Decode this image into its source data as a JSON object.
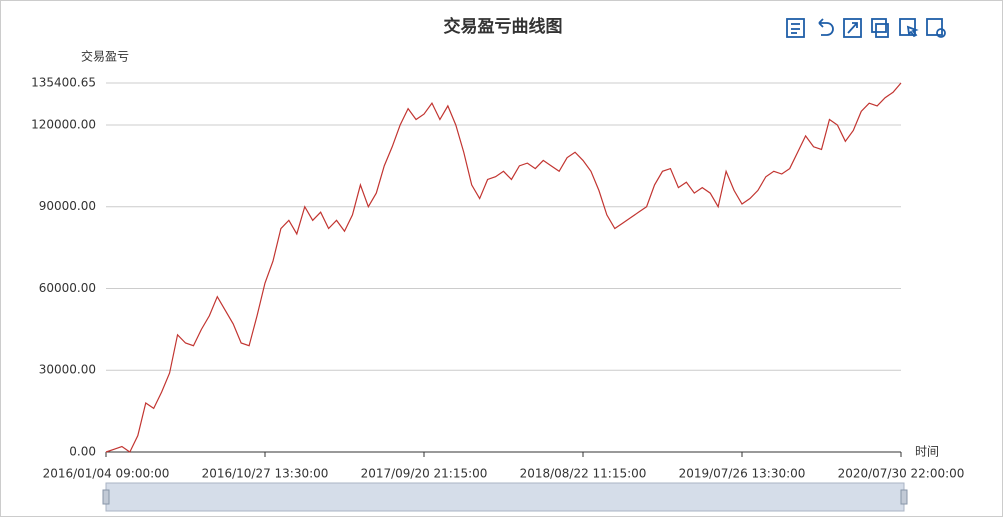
{
  "chart_data": {
    "type": "line",
    "title": "交易盈亏曲线图",
    "y_label": "交易盈亏",
    "x_label": "时间",
    "categories": [
      "2016/01/04 09:00:00",
      null,
      null,
      null,
      null,
      null,
      null,
      null,
      null,
      null,
      null,
      null,
      null,
      null,
      null,
      null,
      null,
      null,
      null,
      null,
      "2016/10/27 13:30:00",
      null,
      null,
      null,
      null,
      null,
      null,
      null,
      null,
      null,
      null,
      null,
      null,
      null,
      null,
      null,
      null,
      null,
      null,
      null,
      "2017/09/20 21:15:00",
      null,
      null,
      null,
      null,
      null,
      null,
      null,
      null,
      null,
      null,
      null,
      null,
      null,
      null,
      null,
      null,
      null,
      null,
      null,
      "2018/08/22 11:15:00",
      null,
      null,
      null,
      null,
      null,
      null,
      null,
      null,
      null,
      null,
      null,
      null,
      null,
      null,
      null,
      null,
      null,
      null,
      null,
      "2019/07/26 13:30:00",
      null,
      null,
      null,
      null,
      null,
      null,
      null,
      null,
      null,
      null,
      null,
      null,
      null,
      null,
      null,
      null,
      null,
      null,
      null,
      "2020/07/30 22:00:00"
    ],
    "values": [
      0,
      1000,
      2000,
      0,
      6000,
      18000,
      16000,
      22000,
      29000,
      43000,
      40000,
      39000,
      45000,
      50000,
      57000,
      52000,
      47000,
      40000,
      39000,
      50000,
      62000,
      70000,
      82000,
      85000,
      80000,
      90000,
      85000,
      88000,
      82000,
      85000,
      81000,
      87000,
      98000,
      90000,
      95000,
      105000,
      112000,
      120000,
      126000,
      122000,
      124000,
      128000,
      122000,
      127000,
      120000,
      110000,
      98000,
      93000,
      100000,
      101000,
      103000,
      100000,
      105000,
      106000,
      104000,
      107000,
      105000,
      103000,
      108000,
      110000,
      107000,
      103000,
      96000,
      87000,
      82000,
      84000,
      86000,
      88000,
      90000,
      98000,
      103000,
      104000,
      97000,
      99000,
      95000,
      97000,
      95000,
      90000,
      103000,
      96000,
      91000,
      93000,
      96000,
      101000,
      103000,
      102000,
      104000,
      110000,
      116000,
      112000,
      111000,
      122000,
      120000,
      114000,
      118000,
      125000,
      128000,
      127000,
      130000,
      132000,
      135400.65
    ],
    "color": "#c23531",
    "ylim": [
      0,
      135400.65
    ],
    "yticks": [
      {
        "value": 0,
        "label": "0.00"
      },
      {
        "value": 30000,
        "label": "30000.00"
      },
      {
        "value": 60000,
        "label": "60000.00"
      },
      {
        "value": 90000,
        "label": "90000.00"
      },
      {
        "value": 120000,
        "label": "120000.00"
      },
      135400.65
    ],
    "grid": true
  }
}
